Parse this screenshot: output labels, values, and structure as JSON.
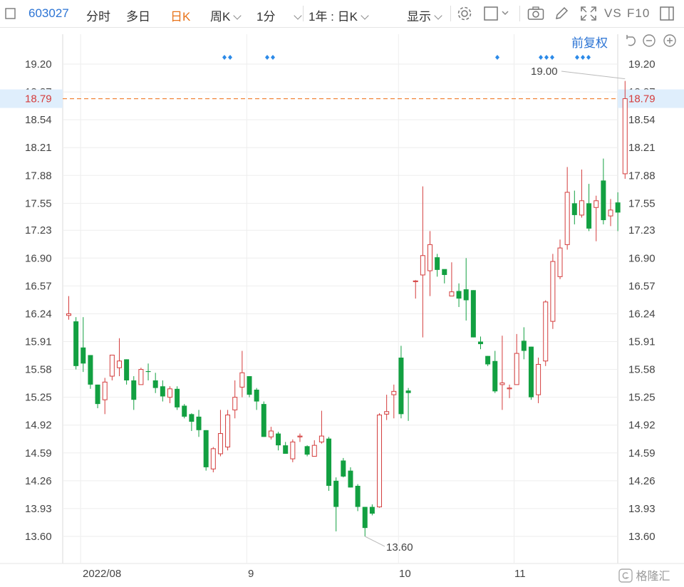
{
  "toolbar": {
    "left_icon": "panel-icon",
    "code": "603027",
    "tabs": [
      "分时",
      "多日",
      "日K",
      "周K",
      "1分"
    ],
    "active_tab": "日K",
    "range": "1年 : 日K",
    "display": "显示",
    "icons": [
      "settings-icon",
      "window-icon",
      "camera-icon",
      "draw-pen-icon",
      "fullscreen-icon"
    ],
    "vs": "VS",
    "f10": "F10"
  },
  "adjust": {
    "label": "前复权",
    "icons": [
      "reset-icon",
      "zoom-out-icon",
      "zoom-in-icon"
    ]
  },
  "watermark": "格隆汇",
  "colors": {
    "up": "#d43c3c",
    "down": "#12a041",
    "price_line": "#f07d2c",
    "marker": "#2c8ae8"
  },
  "chart_data": {
    "type": "candlestick",
    "yticks": [
      19.2,
      18.87,
      18.54,
      18.21,
      17.88,
      17.55,
      17.23,
      16.9,
      16.57,
      16.24,
      15.91,
      15.58,
      15.25,
      14.92,
      14.59,
      14.26,
      13.93,
      13.6
    ],
    "ylim": [
      13.5,
      19.35
    ],
    "current_price": "18.79",
    "high_label": "19.00",
    "low_label": "13.60",
    "xlabels": [
      "2022/08",
      "9",
      "10",
      "11"
    ],
    "candles": [
      [
        16.22,
        16.24,
        16.45,
        16.17
      ],
      [
        16.15,
        15.62,
        16.2,
        15.58
      ],
      [
        15.84,
        15.65,
        16.2,
        15.55
      ],
      [
        15.75,
        15.4,
        15.75,
        15.35
      ],
      [
        15.4,
        15.17,
        15.4,
        15.12
      ],
      [
        15.22,
        15.43,
        15.48,
        15.05
      ],
      [
        15.5,
        15.75,
        15.75,
        15.45
      ],
      [
        15.6,
        15.68,
        15.95,
        15.5
      ],
      [
        15.7,
        15.45,
        15.7,
        15.4
      ],
      [
        15.45,
        15.22,
        15.5,
        15.1
      ],
      [
        15.4,
        15.58,
        15.6,
        15.4
      ],
      [
        15.56,
        15.55,
        15.65,
        15.45
      ],
      [
        15.45,
        15.36,
        15.54,
        15.3
      ],
      [
        15.38,
        15.26,
        15.45,
        15.2
      ],
      [
        15.25,
        15.35,
        15.38,
        15.18
      ],
      [
        15.35,
        15.13,
        15.38,
        15.1
      ],
      [
        15.15,
        15.02,
        15.17,
        15.0
      ],
      [
        15.05,
        14.96,
        15.06,
        14.85
      ],
      [
        15.02,
        14.86,
        15.1,
        14.78
      ],
      [
        14.86,
        14.42,
        14.86,
        14.38
      ],
      [
        14.4,
        14.64,
        14.66,
        14.36
      ],
      [
        14.58,
        14.82,
        15.1,
        14.55
      ],
      [
        14.66,
        15.04,
        15.1,
        14.62
      ],
      [
        15.1,
        15.25,
        15.45,
        15.0
      ],
      [
        15.37,
        15.54,
        15.8,
        15.25
      ],
      [
        15.5,
        15.28,
        15.5,
        15.25
      ],
      [
        15.34,
        15.2,
        15.36,
        15.1
      ],
      [
        15.17,
        14.78,
        15.2,
        14.78
      ],
      [
        14.78,
        14.85,
        14.9,
        14.75
      ],
      [
        14.82,
        14.68,
        14.84,
        14.62
      ],
      [
        14.68,
        14.58,
        14.72,
        14.58
      ],
      [
        14.52,
        14.72,
        14.75,
        14.48
      ],
      [
        14.78,
        14.79,
        14.82,
        14.72
      ],
      [
        14.67,
        14.57,
        14.68,
        14.55
      ],
      [
        14.55,
        14.68,
        14.74,
        14.55
      ],
      [
        14.72,
        14.79,
        15.09,
        14.7
      ],
      [
        14.76,
        14.2,
        14.78,
        14.14
      ],
      [
        14.26,
        13.95,
        14.3,
        13.66
      ],
      [
        14.5,
        14.31,
        14.53,
        14.3
      ],
      [
        14.38,
        14.18,
        14.42,
        14.18
      ],
      [
        14.2,
        13.95,
        14.22,
        13.9
      ],
      [
        13.95,
        13.7,
        13.95,
        13.6
      ],
      [
        13.95,
        13.87,
        13.98,
        13.85
      ],
      [
        13.95,
        15.04,
        15.06,
        13.94
      ],
      [
        15.05,
        15.08,
        15.28,
        14.98
      ],
      [
        15.28,
        15.32,
        15.4,
        15.0
      ],
      [
        15.72,
        15.05,
        15.86,
        15.0
      ],
      [
        15.33,
        15.3,
        15.36,
        14.97
      ],
      [
        16.62,
        16.63,
        16.64,
        16.42
      ],
      [
        16.7,
        16.93,
        17.75,
        15.96
      ],
      [
        16.75,
        17.06,
        17.22,
        16.45
      ],
      [
        16.91,
        16.76,
        16.95,
        16.68
      ],
      [
        16.77,
        16.7,
        16.75,
        16.6
      ],
      [
        16.45,
        16.5,
        16.85,
        16.45
      ],
      [
        16.51,
        16.42,
        16.6,
        16.32
      ],
      [
        16.53,
        16.4,
        16.9,
        16.16
      ],
      [
        16.52,
        15.96,
        16.52,
        15.96
      ],
      [
        15.91,
        15.88,
        15.97,
        15.82
      ],
      [
        15.74,
        15.64,
        15.74,
        15.62
      ],
      [
        15.68,
        15.32,
        15.8,
        15.3
      ],
      [
        15.4,
        15.42,
        15.98,
        15.1
      ],
      [
        15.35,
        15.36,
        15.4,
        15.24
      ],
      [
        15.4,
        15.77,
        16.0,
        15.4
      ],
      [
        15.92,
        15.8,
        16.08,
        15.7
      ],
      [
        15.85,
        15.25,
        15.85,
        15.22
      ],
      [
        15.28,
        15.64,
        15.72,
        15.18
      ],
      [
        15.68,
        16.38,
        16.4,
        15.62
      ],
      [
        16.15,
        16.86,
        16.95,
        16.06
      ],
      [
        16.68,
        17.02,
        17.12,
        16.65
      ],
      [
        17.06,
        17.68,
        17.98,
        17.0
      ],
      [
        17.55,
        17.41,
        17.7,
        17.3
      ],
      [
        17.41,
        17.58,
        17.95,
        17.38
      ],
      [
        17.55,
        17.25,
        17.78,
        17.22
      ],
      [
        17.5,
        17.58,
        17.64,
        17.1
      ],
      [
        17.82,
        17.35,
        18.08,
        17.3
      ],
      [
        17.4,
        17.47,
        17.6,
        17.28
      ],
      [
        17.56,
        17.44,
        17.68,
        17.22
      ],
      [
        17.9,
        18.79,
        19.0,
        17.84
      ]
    ]
  }
}
